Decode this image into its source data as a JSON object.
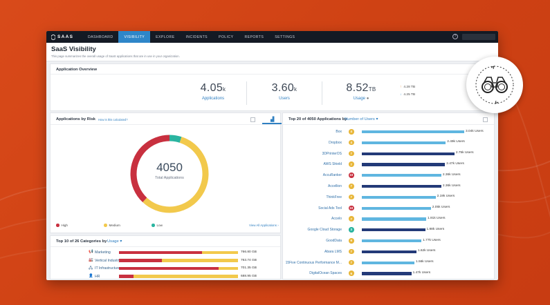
{
  "nav": {
    "logo": "SAAS",
    "items": [
      {
        "label": "DASHBOARD",
        "active": false
      },
      {
        "label": "VISIBILITY",
        "active": true
      },
      {
        "label": "EXPLORE",
        "active": false
      },
      {
        "label": "INCIDENTS",
        "active": false
      },
      {
        "label": "POLICY",
        "active": false
      },
      {
        "label": "REPORTS",
        "active": false
      },
      {
        "label": "SETTINGS",
        "active": false
      }
    ],
    "help": "?"
  },
  "page": {
    "title": "SaaS Visibility",
    "subtitle": "This page summarizes the overall usage of SaaS applications that are in use in your organization."
  },
  "overview": {
    "title": "Application Overview",
    "applications": {
      "value": "4.05",
      "unit": "k",
      "label": "Applications"
    },
    "users": {
      "value": "3.60",
      "unit": "k",
      "label": "Users"
    },
    "usage": {
      "value": "8.52",
      "unit": "TB",
      "label": "Usage"
    },
    "upload": "4.28 TB",
    "download": "4.25 TB"
  },
  "risk": {
    "title": "Applications by Risk",
    "how_link": "How is this calculated?",
    "total": "4050",
    "total_label": "Total Applications",
    "legend": [
      {
        "label": "High",
        "color": "#c8303f"
      },
      {
        "label": "Medium",
        "color": "#f2c94c"
      },
      {
        "label": "Low",
        "color": "#2ab4a0"
      }
    ],
    "view_all": "View All Applications",
    "segments": [
      {
        "name": "Low",
        "fraction": 0.05,
        "color": "#2ab4a0"
      },
      {
        "name": "Medium",
        "fraction": 0.57,
        "color": "#f2c94c"
      },
      {
        "name": "High",
        "fraction": 0.38,
        "color": "#c8303f"
      }
    ]
  },
  "categories": {
    "title": "Top 10 of 26 Categories by",
    "metric": "Usage",
    "colors": {
      "high": "#c8303f",
      "medium": "#f2c94c",
      "low": "#2ab4a0"
    },
    "rows": [
      {
        "icon": "megaphone-icon",
        "glyph": "📢",
        "label": "Marketing",
        "value": "766.80 GB",
        "high": 0.7,
        "medium": 0.3
      },
      {
        "icon": "factory-icon",
        "glyph": "🏭",
        "label": "Vertical Industry",
        "value": "763.74 GB",
        "high": 0.36,
        "medium": 0.64
      },
      {
        "icon": "network-icon",
        "glyph": "🖧",
        "label": "IT Infrastructure",
        "value": "701.35 GB",
        "high": 0.84,
        "medium": 0.16
      },
      {
        "icon": "person-icon",
        "glyph": "👤",
        "label": "HR",
        "value": "688.95 GB",
        "high": 0.12,
        "medium": 0.88
      }
    ]
  },
  "top_apps": {
    "title": "Top 20 of 4050 Applications by",
    "metric": "Number of Users",
    "rows": [
      {
        "name": "Box",
        "score": "4",
        "users": "3.04k Users",
        "count": 3040
      },
      {
        "name": "Dropbox",
        "score": "4",
        "users": "2.49k Users",
        "count": 2490
      },
      {
        "name": "3DPrinterOS",
        "score": "7",
        "users": "2.75k Users",
        "count": 2750
      },
      {
        "name": "AWS Shield",
        "score": "7",
        "users": "2.47k Users",
        "count": 2470
      },
      {
        "name": "AccuRanker",
        "score": "10",
        "users": "2.36k Users",
        "count": 2360
      },
      {
        "name": "Accellion",
        "score": "7",
        "users": "2.36k Users",
        "count": 2360
      },
      {
        "name": "ThinkFree",
        "score": "7",
        "users": "2.19k Users",
        "count": 2190
      },
      {
        "name": "Social Ads Tool",
        "score": "10",
        "users": "2.05k Users",
        "count": 2050
      },
      {
        "name": "Accelo",
        "score": "7",
        "users": "1.91k Users",
        "count": 1910
      },
      {
        "name": "Google Cloud Storage",
        "score": "3",
        "users": "1.88k Users",
        "count": 1880
      },
      {
        "name": "GoodData",
        "score": "6",
        "users": "1.77k Users",
        "count": 1770
      },
      {
        "name": "Abara LMS",
        "score": "7",
        "users": "1.62k Users",
        "count": 1620
      },
      {
        "name": "15Five Continuous Performance M...",
        "score": "7",
        "users": "1.56k Users",
        "count": 1560
      },
      {
        "name": "DigitalOcean Spaces",
        "score": "6",
        "users": "1.47k Users",
        "count": 1470
      }
    ]
  }
}
